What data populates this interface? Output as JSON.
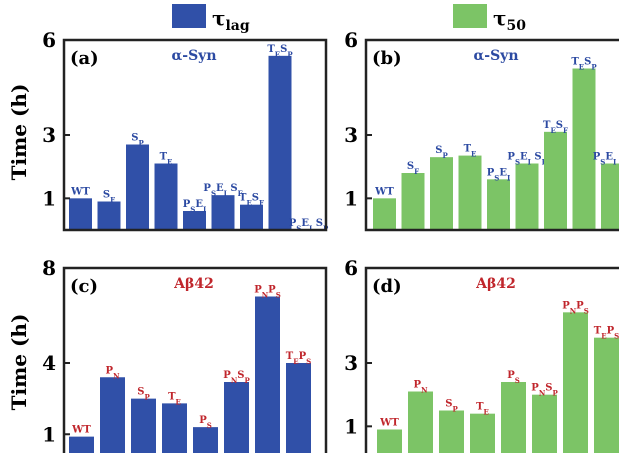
{
  "legend": {
    "items": [
      {
        "label": "τ",
        "sub": "lag",
        "color": "#3050a8"
      },
      {
        "label": "τ",
        "sub": "50",
        "color": "#7cc466"
      }
    ]
  },
  "y_axis_label": "Time (h)",
  "colors": {
    "blue": "#3050a8",
    "green": "#7cc466",
    "blue_text": "#2c4aa2",
    "red_text": "#c0262c"
  },
  "chart_data": [
    {
      "type": "bar",
      "panel": "(a)",
      "title": "α-Syn",
      "ylim": [
        0,
        6
      ],
      "yticks": [
        1,
        3,
        6
      ],
      "categories": [
        {
          "parts": [
            {
              "t": "WT"
            }
          ]
        },
        {
          "parts": [
            {
              "t": "S"
            },
            {
              "s": "F"
            }
          ]
        },
        {
          "parts": [
            {
              "t": "S"
            },
            {
              "s": "P"
            }
          ]
        },
        {
          "parts": [
            {
              "t": "T"
            },
            {
              "s": "E"
            }
          ]
        },
        {
          "parts": [
            {
              "t": "P"
            },
            {
              "s": "S"
            },
            {
              "t": "E"
            },
            {
              "s": "I"
            }
          ]
        },
        {
          "parts": [
            {
              "t": "P"
            },
            {
              "s": "S"
            },
            {
              "t": "E"
            },
            {
              "s": "I"
            },
            {
              "t": " S"
            },
            {
              "s": "F"
            }
          ]
        },
        {
          "parts": [
            {
              "t": "T"
            },
            {
              "s": "E"
            },
            {
              "t": "S"
            },
            {
              "s": "F"
            }
          ]
        },
        {
          "parts": [
            {
              "t": "T"
            },
            {
              "s": "E"
            },
            {
              "t": "S"
            },
            {
              "s": "P"
            }
          ]
        },
        {
          "parts": [
            {
              "t": "P"
            },
            {
              "s": "S"
            },
            {
              "t": "E"
            },
            {
              "s": "I"
            },
            {
              "t": " S"
            },
            {
              "s": "P"
            }
          ]
        }
      ],
      "values": [
        1.0,
        0.9,
        2.7,
        2.1,
        0.6,
        1.1,
        0.8,
        5.5,
        0.0
      ]
    },
    {
      "type": "bar",
      "panel": "(b)",
      "title": "α-Syn",
      "ylim": [
        0,
        6
      ],
      "yticks": [
        1,
        3,
        6
      ],
      "categories": [
        {
          "parts": [
            {
              "t": "WT"
            }
          ]
        },
        {
          "parts": [
            {
              "t": "S"
            },
            {
              "s": "F"
            }
          ]
        },
        {
          "parts": [
            {
              "t": "S"
            },
            {
              "s": "P"
            }
          ]
        },
        {
          "parts": [
            {
              "t": "T"
            },
            {
              "s": "E"
            }
          ]
        },
        {
          "parts": [
            {
              "t": "P"
            },
            {
              "s": "S"
            },
            {
              "t": "E"
            },
            {
              "s": "I"
            }
          ]
        },
        {
          "parts": [
            {
              "t": "P"
            },
            {
              "s": "S"
            },
            {
              "t": "E"
            },
            {
              "s": "I"
            },
            {
              "t": " S"
            },
            {
              "s": "F"
            }
          ]
        },
        {
          "parts": [
            {
              "t": "T"
            },
            {
              "s": "E"
            },
            {
              "t": "S"
            },
            {
              "s": "F"
            }
          ]
        },
        {
          "parts": [
            {
              "t": "T"
            },
            {
              "s": "E"
            },
            {
              "t": "S"
            },
            {
              "s": "P"
            }
          ]
        },
        {
          "parts": [
            {
              "t": "P"
            },
            {
              "s": "S"
            },
            {
              "t": "E"
            },
            {
              "s": "I"
            },
            {
              "t": " S"
            },
            {
              "s": "P"
            }
          ]
        }
      ],
      "values": [
        1.0,
        1.8,
        2.3,
        2.35,
        1.6,
        2.1,
        3.1,
        5.1,
        2.1
      ]
    },
    {
      "type": "bar",
      "panel": "(c)",
      "title": "Aβ42",
      "ylim": [
        0,
        8
      ],
      "yticks": [
        1,
        4,
        8
      ],
      "categories": [
        {
          "parts": [
            {
              "t": "WT"
            }
          ]
        },
        {
          "parts": [
            {
              "t": "P"
            },
            {
              "s": "N"
            }
          ]
        },
        {
          "parts": [
            {
              "t": "S"
            },
            {
              "s": "P"
            }
          ]
        },
        {
          "parts": [
            {
              "t": "T"
            },
            {
              "s": "E"
            }
          ]
        },
        {
          "parts": [
            {
              "t": "P"
            },
            {
              "s": "S"
            }
          ]
        },
        {
          "parts": [
            {
              "t": "P"
            },
            {
              "s": "N"
            },
            {
              "t": "S"
            },
            {
              "s": "P"
            }
          ]
        },
        {
          "parts": [
            {
              "t": "P"
            },
            {
              "s": "N"
            },
            {
              "t": "P"
            },
            {
              "s": "S"
            }
          ]
        },
        {
          "parts": [
            {
              "t": "T"
            },
            {
              "s": "E"
            },
            {
              "t": "P"
            },
            {
              "s": "S"
            }
          ]
        }
      ],
      "values": [
        0.9,
        3.4,
        2.5,
        2.3,
        1.3,
        3.2,
        6.8,
        4.0
      ]
    },
    {
      "type": "bar",
      "panel": "(d)",
      "title": "Aβ42",
      "ylim": [
        0,
        6
      ],
      "yticks": [
        1,
        3,
        6
      ],
      "categories": [
        {
          "parts": [
            {
              "t": "WT"
            }
          ]
        },
        {
          "parts": [
            {
              "t": "P"
            },
            {
              "s": "N"
            }
          ]
        },
        {
          "parts": [
            {
              "t": "S"
            },
            {
              "s": "P"
            }
          ]
        },
        {
          "parts": [
            {
              "t": "T"
            },
            {
              "s": "E"
            }
          ]
        },
        {
          "parts": [
            {
              "t": "P"
            },
            {
              "s": "S"
            }
          ]
        },
        {
          "parts": [
            {
              "t": "P"
            },
            {
              "s": "N"
            },
            {
              "t": "S"
            },
            {
              "s": "P"
            }
          ]
        },
        {
          "parts": [
            {
              "t": "P"
            },
            {
              "s": "N"
            },
            {
              "t": "P"
            },
            {
              "s": "S"
            }
          ]
        },
        {
          "parts": [
            {
              "t": "T"
            },
            {
              "s": "E"
            },
            {
              "t": "P"
            },
            {
              "s": "S"
            }
          ]
        }
      ],
      "values": [
        0.9,
        2.1,
        1.5,
        1.4,
        2.4,
        2.0,
        4.6,
        3.8
      ]
    }
  ]
}
